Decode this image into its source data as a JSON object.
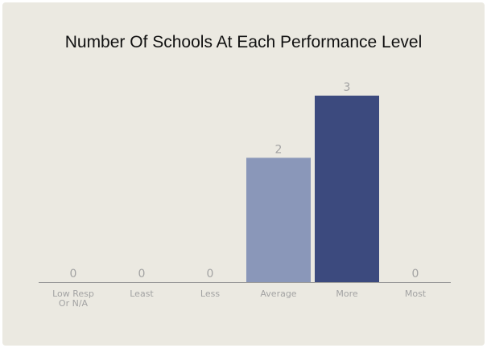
{
  "chart_data": {
    "type": "bar",
    "title": "Number Of Schools At Each Performance Level",
    "categories": [
      "Low Resp\nOr N/A",
      "Least",
      "Less",
      "Average",
      "More",
      "Most"
    ],
    "values": [
      0,
      0,
      0,
      2,
      3,
      0
    ],
    "value_labels": [
      "0",
      "0",
      "0",
      "2",
      "3",
      "0"
    ],
    "bar_colors": [
      "#7f8cb3",
      "#7f8cb3",
      "#7f8cb3",
      "#8a97b9",
      "#3c4a7e",
      "#3c4a7e"
    ],
    "xlabel": "",
    "ylabel": "",
    "ylim": [
      0,
      3
    ],
    "grid": false,
    "legend": "none"
  },
  "colors": {
    "background": "#ebe9e1",
    "axis": "#9a9a9a",
    "label_text": "#a3a3a3"
  }
}
